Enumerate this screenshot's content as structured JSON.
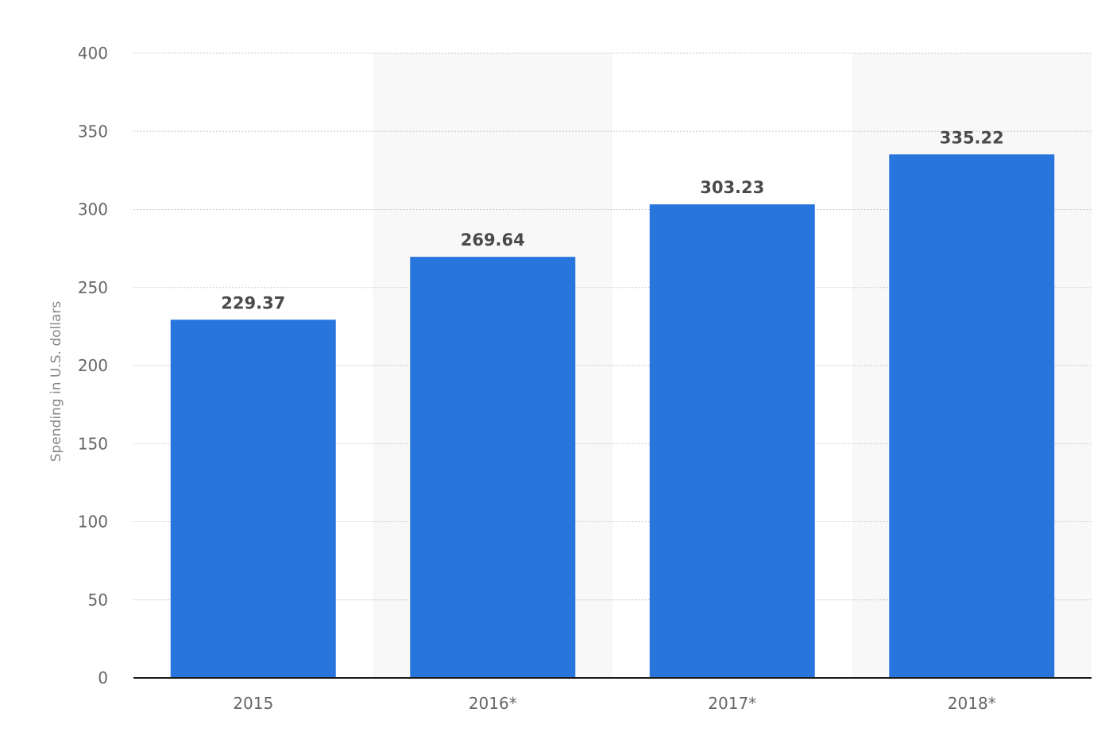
{
  "chart_data": {
    "type": "bar",
    "categories": [
      "2015",
      "2016*",
      "2017*",
      "2018*"
    ],
    "values": [
      229.37,
      269.64,
      303.23,
      335.22
    ],
    "value_labels": [
      "229.37",
      "269.64",
      "303.23",
      "335.22"
    ],
    "title": "",
    "xlabel": "",
    "ylabel": "Spending in U.S. dollars",
    "ylim": [
      0,
      400
    ],
    "yticks": [
      0,
      50,
      100,
      150,
      200,
      250,
      300,
      350,
      400
    ],
    "ytick_labels": [
      "0",
      "50",
      "100",
      "150",
      "200",
      "250",
      "300",
      "350",
      "400"
    ],
    "grid": true,
    "legend": "none",
    "colors": {
      "bar": "#2876dd",
      "alternate_band": "#f8f8f8",
      "baseline": "#1a1a1a"
    }
  }
}
